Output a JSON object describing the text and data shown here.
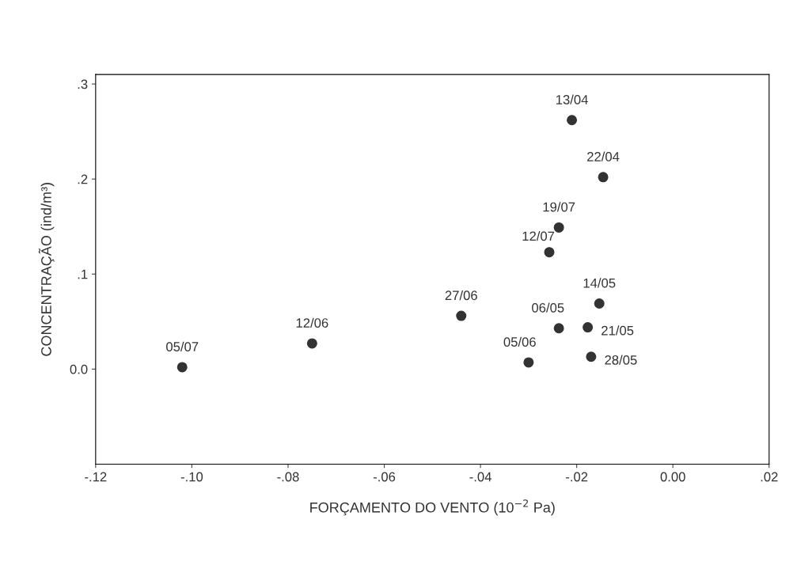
{
  "chart_data": {
    "type": "scatter",
    "xlabel": "FORÇAMENTO DO VENTO (10$^{−2}$ Pa)",
    "ylabel": "CONCENTRAÇÃO (ind/m³)",
    "x": [
      -0.102,
      -0.075,
      -0.044,
      -0.03,
      -0.0237,
      -0.0257,
      -0.0237,
      -0.021,
      -0.0145,
      -0.0153,
      -0.0177,
      -0.017
    ],
    "series": [
      {
        "color": "#333333",
        "values": [
          0.002,
          0.027,
          0.056,
          0.007,
          0.043,
          0.123,
          0.149,
          0.262,
          0.202,
          0.069,
          0.044,
          0.013
        ]
      }
    ],
    "annotations": [
      {
        "text": "05/07",
        "x": -0.102,
        "y": 0.002
      },
      {
        "text": "12/06",
        "x": -0.075,
        "y": 0.027
      },
      {
        "text": "27/06",
        "x": -0.044,
        "y": 0.056
      },
      {
        "text": "05/06",
        "x": -0.03,
        "y": 0.007
      },
      {
        "text": "06/05",
        "x": -0.0237,
        "y": 0.043
      },
      {
        "text": "12/07",
        "x": -0.0257,
        "y": 0.123
      },
      {
        "text": "19/07",
        "x": -0.0237,
        "y": 0.149
      },
      {
        "text": "13/04",
        "x": -0.021,
        "y": 0.262
      },
      {
        "text": "22/04",
        "x": -0.0145,
        "y": 0.202
      },
      {
        "text": "14/05",
        "x": -0.0153,
        "y": 0.069
      },
      {
        "text": "21/05",
        "x": -0.0177,
        "y": 0.044
      },
      {
        "text": "28/05",
        "x": -0.017,
        "y": 0.013
      }
    ],
    "xlim": [
      -0.12,
      0.02
    ],
    "xticks": [
      {
        "value": -0.12,
        "label": "-.12"
      },
      {
        "value": -0.1,
        "label": "-.10"
      },
      {
        "value": -0.08,
        "label": "-.08"
      },
      {
        "value": -0.06,
        "label": "-.06"
      },
      {
        "value": -0.04,
        "label": "-.04"
      },
      {
        "value": -0.02,
        "label": "-.02"
      },
      {
        "value": 0.0,
        "label": "0.00"
      },
      {
        "value": 0.02,
        "label": ".02"
      }
    ],
    "ylim": [
      -0.1,
      0.31
    ],
    "yticks": [
      {
        "value": 0.0,
        "label": "0.0"
      },
      {
        "value": 0.1,
        "label": ".1"
      },
      {
        "value": 0.2,
        "label": ".2"
      },
      {
        "value": 0.3,
        "label": ".3"
      }
    ],
    "marker": "circle",
    "grid": false,
    "legend": false
  }
}
